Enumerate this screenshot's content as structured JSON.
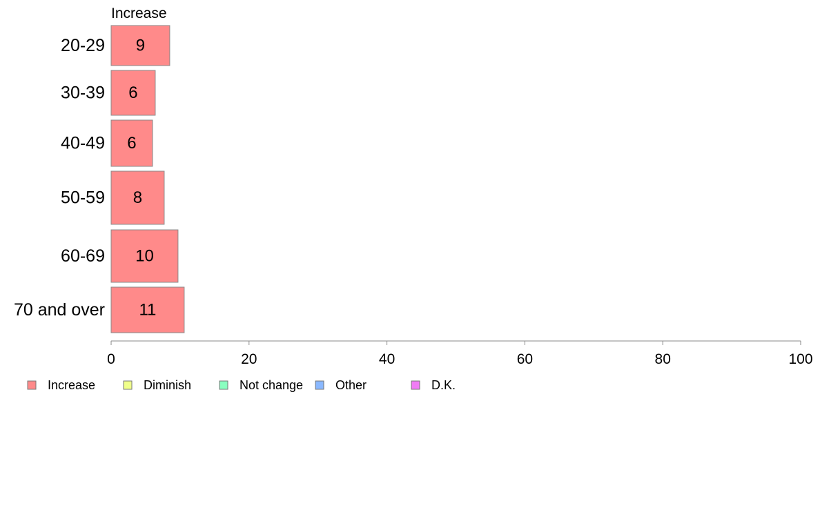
{
  "chart_data": {
    "type": "bar",
    "orientation": "horizontal",
    "series_header": "Increase",
    "categories": [
      "20-29",
      "30-39",
      "40-49",
      "50-59",
      "60-69",
      "70 and over"
    ],
    "series": [
      {
        "name": "Increase",
        "color": "#ff8a8a",
        "values": [
          8.5,
          6.4,
          6.0,
          7.7,
          9.7,
          10.6
        ],
        "labels": [
          "9",
          "6",
          "6",
          "8",
          "10",
          "11"
        ]
      }
    ],
    "xlim": [
      0,
      100
    ],
    "xticks": [
      0,
      20,
      40,
      60,
      80,
      100
    ],
    "grid": false,
    "legend_position": "bottom-left",
    "legend": [
      {
        "label": "Increase",
        "color": "#ff8a8a"
      },
      {
        "label": "Diminish",
        "color": "#f0ff8a"
      },
      {
        "label": "Not change",
        "color": "#8affc0"
      },
      {
        "label": "Other",
        "color": "#8ab8ff"
      },
      {
        "label": "D.K.",
        "color": "#f07cf5"
      }
    ],
    "bar_edge_color": "#888888",
    "axis_color": "#888888"
  }
}
